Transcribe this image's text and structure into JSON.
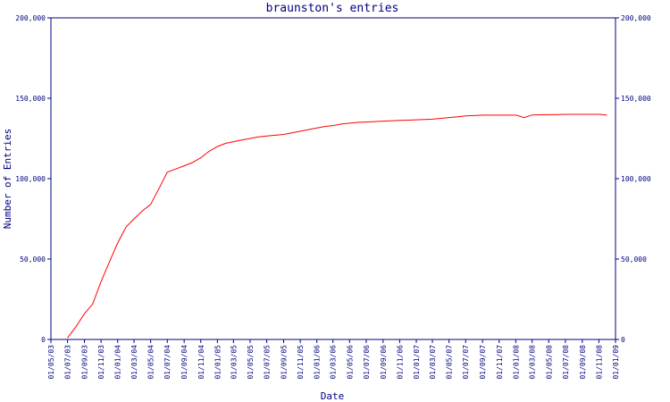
{
  "chart_data": {
    "type": "line",
    "title": "braunston's entries",
    "xlabel": "Date",
    "ylabel": "Number of Entries",
    "ylim": [
      0,
      200000
    ],
    "y_ticks": [
      {
        "value": 0,
        "label": "0"
      },
      {
        "value": 50000,
        "label": "50,000"
      },
      {
        "value": 100000,
        "label": "100,000"
      },
      {
        "value": 150000,
        "label": "150,000"
      },
      {
        "value": 200000,
        "label": "200,000"
      }
    ],
    "x_ticks": [
      "01/05/03",
      "01/07/03",
      "01/09/03",
      "01/11/03",
      "01/01/04",
      "01/03/04",
      "01/05/04",
      "01/07/04",
      "01/09/04",
      "01/11/04",
      "01/01/05",
      "01/03/05",
      "01/05/05",
      "01/07/05",
      "01/09/05",
      "01/11/05",
      "01/01/06",
      "01/03/06",
      "01/05/06",
      "01/07/06",
      "01/09/06",
      "01/11/06",
      "01/01/07",
      "01/03/07",
      "01/05/07",
      "01/07/07",
      "01/09/07",
      "01/11/07",
      "01/01/08",
      "01/03/08",
      "01/05/08",
      "01/07/08",
      "01/09/08",
      "01/11/08",
      "01/01/09"
    ],
    "grid": false,
    "line_color": "#ff0000",
    "axis_color": "#000080",
    "series": [
      {
        "x": [
          "01/07/03",
          "01/08/03",
          "01/09/03",
          "01/10/03",
          "01/11/03",
          "01/12/03",
          "01/01/04",
          "01/02/04",
          "01/03/04",
          "01/04/04",
          "01/05/04",
          "01/06/04",
          "01/07/04",
          "01/08/04",
          "01/09/04",
          "01/10/04",
          "01/11/04",
          "01/12/04",
          "01/01/05",
          "01/02/05",
          "01/03/05",
          "01/04/05",
          "01/05/05",
          "01/06/05",
          "01/07/05",
          "01/08/05",
          "01/09/05",
          "01/10/05",
          "01/11/05",
          "01/12/05",
          "01/01/06",
          "01/02/06",
          "01/03/06",
          "01/04/06",
          "01/05/06",
          "01/06/06",
          "01/07/06",
          "01/08/06",
          "01/09/06",
          "01/10/06",
          "01/11/06",
          "01/12/06",
          "01/01/07",
          "01/02/07",
          "01/03/07",
          "01/04/07",
          "01/05/07",
          "01/06/07",
          "01/07/07",
          "01/08/07",
          "01/09/07",
          "01/10/07",
          "01/11/07",
          "01/12/07",
          "01/01/08",
          "01/02/08",
          "01/03/08",
          "01/04/08",
          "01/05/08",
          "01/06/08",
          "01/07/08",
          "01/08/08",
          "01/09/08",
          "01/10/08",
          "01/11/08",
          "01/12/08"
        ],
        "values": [
          1000,
          8000,
          16000,
          22000,
          36000,
          48000,
          60000,
          70000,
          75000,
          80000,
          84000,
          94000,
          104000,
          106000,
          108000,
          110000,
          113000,
          117000,
          120000,
          122000,
          123000,
          124000,
          125000,
          126000,
          126500,
          127000,
          127500,
          128500,
          129500,
          130500,
          131500,
          132500,
          133000,
          134000,
          134500,
          135000,
          135200,
          135500,
          135800,
          136000,
          136200,
          136400,
          136600,
          136800,
          137000,
          137500,
          138000,
          138500,
          139000,
          139200,
          139500,
          139500,
          139500,
          139500,
          139500,
          138000,
          139600,
          139700,
          139800,
          139900,
          140000,
          140000,
          140000,
          140000,
          140000,
          139500
        ]
      }
    ]
  }
}
